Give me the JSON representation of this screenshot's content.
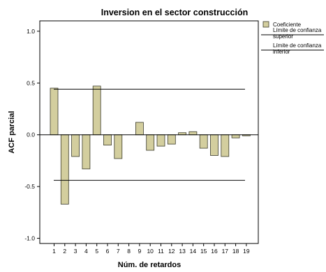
{
  "chart_data": {
    "type": "bar",
    "title": "Inversion en el sector construcción",
    "xlabel": "Núm. de retardos",
    "ylabel": "ACF parcial",
    "categories": [
      "1",
      "2",
      "3",
      "4",
      "5",
      "6",
      "7",
      "8",
      "9",
      "10",
      "11",
      "12",
      "13",
      "14",
      "15",
      "16",
      "17",
      "18",
      "19"
    ],
    "series": [
      {
        "name": "Coeficiente",
        "values": [
          0.45,
          -0.67,
          -0.21,
          -0.33,
          0.47,
          -0.1,
          -0.23,
          0.0,
          0.12,
          -0.15,
          -0.11,
          -0.09,
          0.02,
          0.03,
          -0.13,
          -0.2,
          -0.21,
          -0.03,
          -0.01
        ]
      }
    ],
    "confidence_limits": {
      "upper": 0.44,
      "lower": -0.44
    },
    "ylim": [
      -1.05,
      1.1
    ],
    "yticks": [
      "1.0",
      "0.5",
      "0.0",
      "-0.5",
      "-1.0"
    ],
    "grid": false,
    "legend": {
      "position": "top-right",
      "items": [
        {
          "label": "Coeficiente",
          "kind": "bar"
        },
        {
          "label": "Límite de confianza superior",
          "kind": "line",
          "lines": [
            "Límite de confianza",
            "superior"
          ]
        },
        {
          "label": "Límite de confianza inferior",
          "kind": "line",
          "lines": [
            "Límite de confianza",
            "inferior"
          ]
        }
      ]
    },
    "colors": {
      "bar_fill": "#d3ce9e",
      "bar_stroke": "#3a3a2a",
      "line": "#000000"
    }
  }
}
